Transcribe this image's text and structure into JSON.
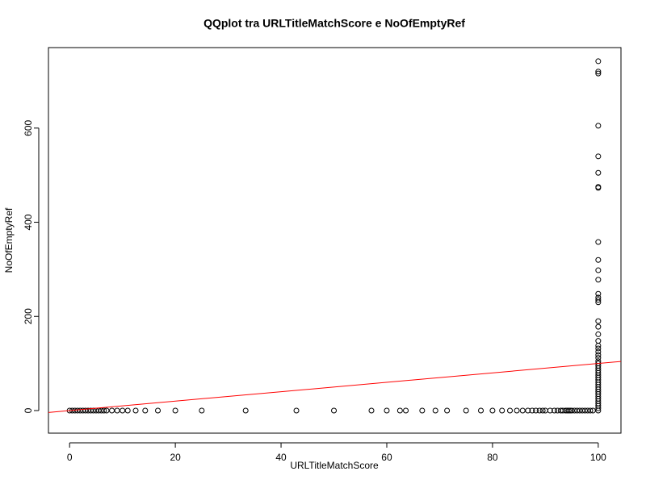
{
  "chart_data": {
    "type": "scatter",
    "title": "QQplot tra URLTitleMatchScore e NoOfEmptyRef",
    "x_label": "URLTitleMatchScore",
    "y_label": "NoOfEmptyRef",
    "xlim": [
      -4,
      104.3
    ],
    "ylim": [
      -48,
      771
    ],
    "xticks": [
      0,
      20,
      40,
      60,
      80,
      100
    ],
    "yticks": [
      0,
      200,
      400,
      600
    ],
    "series": [
      {
        "color": "#000000",
        "x": [
          0,
          0.5,
          1,
          1.5,
          2,
          2.5,
          3,
          3.5,
          4,
          4.5,
          5,
          5.5,
          6,
          6.5,
          7,
          8,
          9,
          10,
          11,
          12.5,
          14.3,
          16.7,
          20,
          25,
          33.3,
          42.9,
          50,
          57.1,
          60,
          62.5,
          63.6,
          66.7,
          69.2,
          71.4,
          75,
          77.8,
          80,
          81.8,
          83.3,
          84.6,
          85.7,
          86.7,
          87.5,
          88.2,
          88.9,
          89.5,
          90,
          90.9,
          91.7,
          92.3,
          92.9,
          93.3,
          93.8,
          94.1,
          94.4,
          94.7,
          95,
          95.5,
          96,
          96.5,
          97,
          97.5,
          98,
          98.5,
          99,
          100,
          100,
          100,
          100,
          100,
          100,
          100,
          100,
          100,
          100,
          100,
          100,
          100,
          100,
          100,
          100,
          100,
          100,
          100,
          100,
          100,
          100,
          100,
          100,
          100,
          100,
          100,
          100,
          100,
          100,
          100,
          100,
          100,
          100,
          100,
          100,
          100,
          100,
          100,
          100,
          100,
          100,
          100,
          100,
          100,
          100,
          100
        ],
        "values": [
          0,
          0,
          0,
          0,
          0,
          0,
          0,
          0,
          0,
          0,
          0,
          0,
          0,
          0,
          0,
          0,
          0,
          0,
          0,
          0,
          0,
          0,
          0,
          0,
          0,
          0,
          0,
          0,
          0,
          0,
          0,
          0,
          0,
          0,
          0,
          0,
          0,
          0,
          0,
          0,
          0,
          0,
          0,
          0,
          0,
          0,
          0,
          0,
          0,
          0,
          0,
          0,
          0,
          0,
          0,
          0,
          0,
          0,
          0,
          0,
          0,
          0,
          0,
          0,
          0,
          742,
          720,
          716,
          605,
          540,
          505,
          475,
          473,
          358,
          320,
          298,
          278,
          248,
          240,
          235,
          230,
          190,
          178,
          162,
          148,
          138,
          132,
          125,
          118,
          112,
          105,
          100,
          95,
          90,
          85,
          80,
          75,
          70,
          65,
          60,
          55,
          50,
          45,
          40,
          35,
          30,
          25,
          20,
          15,
          10,
          5,
          0
        ]
      }
    ],
    "reference_line": {
      "slope": 1,
      "intercept": 0,
      "color": "#ff0000"
    }
  }
}
